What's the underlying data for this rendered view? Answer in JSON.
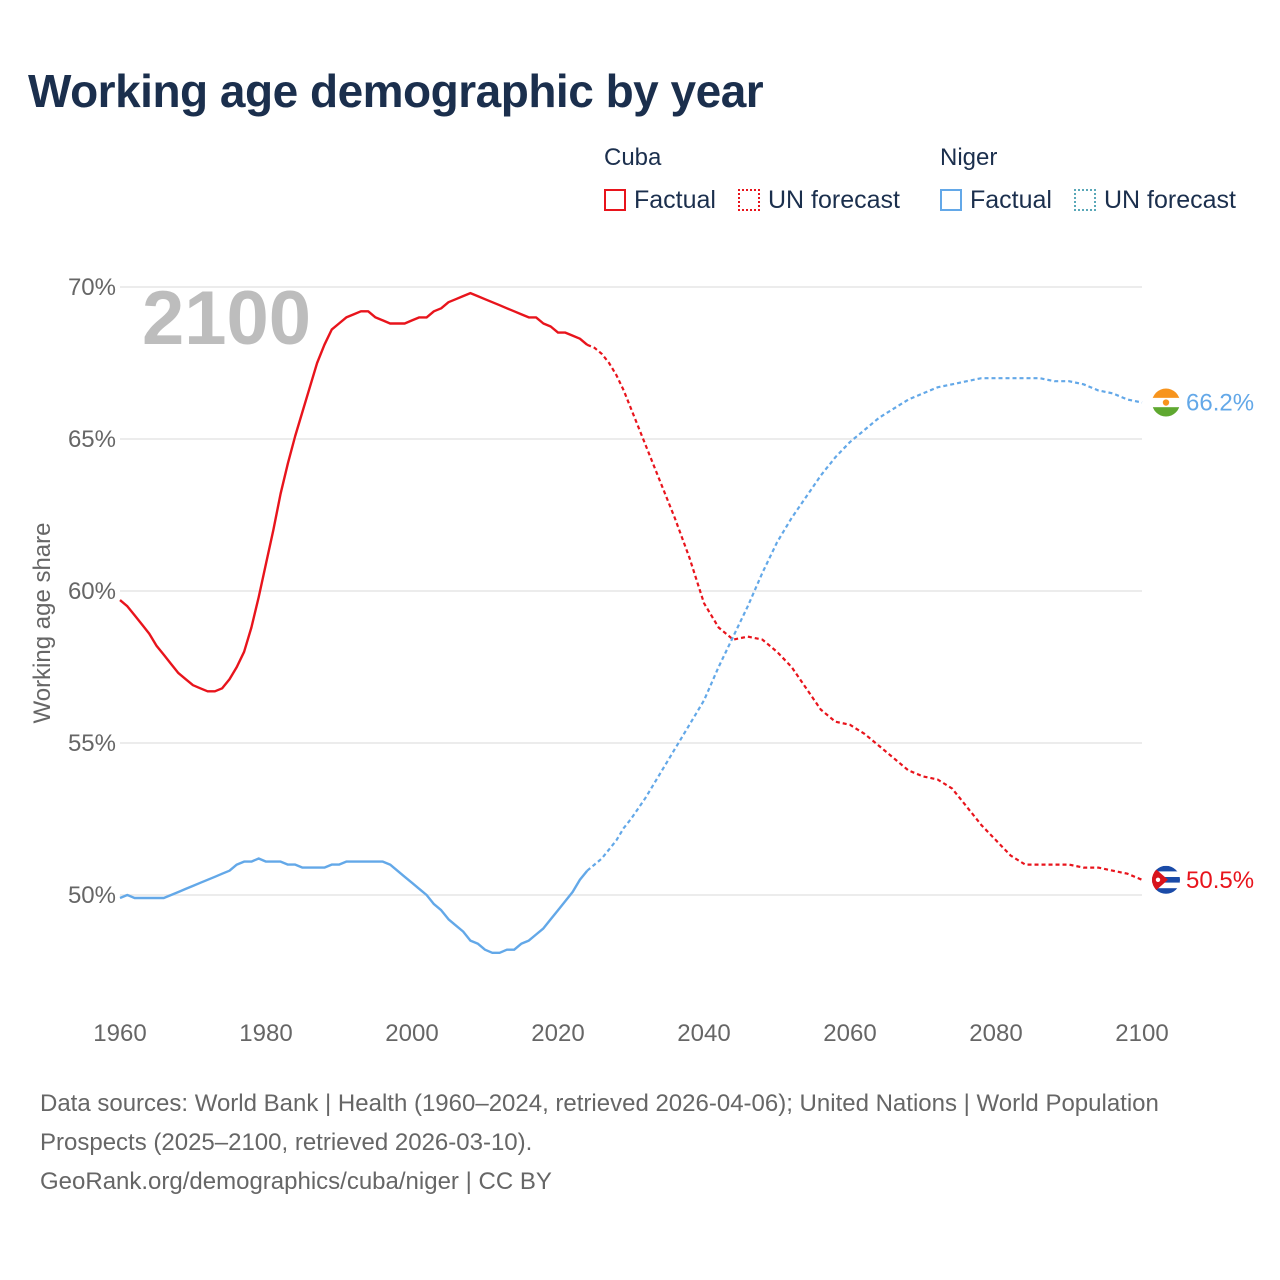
{
  "title": "Working age demographic by year",
  "legend": {
    "groups": [
      {
        "name": "Cuba",
        "factual": "Factual",
        "forecast": "UN forecast"
      },
      {
        "name": "Niger",
        "factual": "Factual",
        "forecast": "UN forecast"
      }
    ]
  },
  "colors": {
    "cuba": "#e8141c",
    "niger": "#63a8e8",
    "grid": "#e6e6e6",
    "axis_text": "#666666",
    "year_watermark": "#bdbdbd"
  },
  "footer": {
    "sources": "Data sources: World Bank | Health (1960–2024, retrieved 2026-04-06); United Nations | World Population Prospects (2025–2100, retrieved 2026-03-10).",
    "credit": "GeoRank.org/demographics/cuba/niger | CC BY"
  },
  "chart_data": {
    "type": "line",
    "ylabel": "Working age share",
    "xlabel": "",
    "year_label": "2100",
    "xlim": [
      1960,
      2100
    ],
    "ylim": [
      46.5,
      70.8
    ],
    "x_ticks": [
      1960,
      1980,
      2000,
      2020,
      2040,
      2060,
      2080,
      2100
    ],
    "x_tick_labels": [
      "1960",
      "1980",
      "2000",
      "2020",
      "2040",
      "2060",
      "2080",
      "2100"
    ],
    "y_ticks": [
      50,
      55,
      60,
      65,
      70
    ],
    "y_tick_labels": [
      "50%",
      "55%",
      "60%",
      "65%",
      "70%"
    ],
    "factual_end_year": 2024,
    "series": [
      {
        "name": "Cuba",
        "color": "#e8141c",
        "end_label": "50.5%",
        "flag": "cuba-flag",
        "x": [
          1960,
          1961,
          1962,
          1963,
          1964,
          1965,
          1966,
          1967,
          1968,
          1969,
          1970,
          1971,
          1972,
          1973,
          1974,
          1975,
          1976,
          1977,
          1978,
          1979,
          1980,
          1981,
          1982,
          1983,
          1984,
          1985,
          1986,
          1987,
          1988,
          1989,
          1990,
          1991,
          1992,
          1993,
          1994,
          1995,
          1996,
          1997,
          1998,
          1999,
          2000,
          2001,
          2002,
          2003,
          2004,
          2005,
          2006,
          2007,
          2008,
          2009,
          2010,
          2011,
          2012,
          2013,
          2014,
          2015,
          2016,
          2017,
          2018,
          2019,
          2020,
          2021,
          2022,
          2023,
          2024,
          2025,
          2026,
          2027,
          2028,
          2029,
          2030,
          2032,
          2034,
          2036,
          2038,
          2040,
          2042,
          2044,
          2046,
          2048,
          2050,
          2052,
          2054,
          2056,
          2058,
          2060,
          2062,
          2064,
          2066,
          2068,
          2070,
          2072,
          2074,
          2076,
          2078,
          2080,
          2082,
          2084,
          2086,
          2088,
          2090,
          2092,
          2094,
          2096,
          2098,
          2100
        ],
        "values": [
          59.7,
          59.5,
          59.2,
          58.9,
          58.6,
          58.2,
          57.9,
          57.6,
          57.3,
          57.1,
          56.9,
          56.8,
          56.7,
          56.7,
          56.8,
          57.1,
          57.5,
          58.0,
          58.8,
          59.8,
          60.9,
          62.0,
          63.2,
          64.2,
          65.1,
          65.9,
          66.7,
          67.5,
          68.1,
          68.6,
          68.8,
          69.0,
          69.1,
          69.2,
          69.2,
          69.0,
          68.9,
          68.8,
          68.8,
          68.8,
          68.9,
          69.0,
          69.0,
          69.2,
          69.3,
          69.5,
          69.6,
          69.7,
          69.8,
          69.7,
          69.6,
          69.5,
          69.4,
          69.3,
          69.2,
          69.1,
          69.0,
          69.0,
          68.8,
          68.7,
          68.5,
          68.5,
          68.4,
          68.3,
          68.1,
          68.0,
          67.8,
          67.5,
          67.1,
          66.6,
          66.0,
          64.8,
          63.6,
          62.4,
          61.1,
          59.6,
          58.8,
          58.4,
          58.5,
          58.4,
          58.0,
          57.5,
          56.8,
          56.1,
          55.7,
          55.6,
          55.3,
          54.9,
          54.5,
          54.1,
          53.9,
          53.8,
          53.5,
          52.9,
          52.3,
          51.8,
          51.3,
          51.0,
          51.0,
          51.0,
          51.0,
          50.9,
          50.9,
          50.8,
          50.7,
          50.5
        ]
      },
      {
        "name": "Niger",
        "color": "#63a8e8",
        "forecast_color": "#63a8e8",
        "end_label": "66.2%",
        "flag": "niger-flag",
        "x": [
          1960,
          1961,
          1962,
          1963,
          1964,
          1965,
          1966,
          1967,
          1968,
          1969,
          1970,
          1971,
          1972,
          1973,
          1974,
          1975,
          1976,
          1977,
          1978,
          1979,
          1980,
          1981,
          1982,
          1983,
          1984,
          1985,
          1986,
          1987,
          1988,
          1989,
          1990,
          1991,
          1992,
          1993,
          1994,
          1995,
          1996,
          1997,
          1998,
          1999,
          2000,
          2001,
          2002,
          2003,
          2004,
          2005,
          2006,
          2007,
          2008,
          2009,
          2010,
          2011,
          2012,
          2013,
          2014,
          2015,
          2016,
          2017,
          2018,
          2019,
          2020,
          2021,
          2022,
          2023,
          2024,
          2025,
          2026,
          2027,
          2028,
          2029,
          2030,
          2032,
          2034,
          2036,
          2038,
          2040,
          2042,
          2044,
          2046,
          2048,
          2050,
          2052,
          2054,
          2056,
          2058,
          2060,
          2062,
          2064,
          2066,
          2068,
          2070,
          2072,
          2074,
          2076,
          2078,
          2080,
          2082,
          2084,
          2086,
          2088,
          2090,
          2092,
          2094,
          2096,
          2098,
          2100
        ],
        "values": [
          49.9,
          50.0,
          49.9,
          49.9,
          49.9,
          49.9,
          49.9,
          50.0,
          50.1,
          50.2,
          50.3,
          50.4,
          50.5,
          50.6,
          50.7,
          50.8,
          51.0,
          51.1,
          51.1,
          51.2,
          51.1,
          51.1,
          51.1,
          51.0,
          51.0,
          50.9,
          50.9,
          50.9,
          50.9,
          51.0,
          51.0,
          51.1,
          51.1,
          51.1,
          51.1,
          51.1,
          51.1,
          51.0,
          50.8,
          50.6,
          50.4,
          50.2,
          50.0,
          49.7,
          49.5,
          49.2,
          49.0,
          48.8,
          48.5,
          48.4,
          48.2,
          48.1,
          48.1,
          48.2,
          48.2,
          48.4,
          48.5,
          48.7,
          48.9,
          49.2,
          49.5,
          49.8,
          50.1,
          50.5,
          50.8,
          51.0,
          51.2,
          51.5,
          51.8,
          52.2,
          52.5,
          53.2,
          54.0,
          54.8,
          55.6,
          56.4,
          57.5,
          58.5,
          59.5,
          60.6,
          61.6,
          62.4,
          63.1,
          63.8,
          64.4,
          64.9,
          65.3,
          65.7,
          66.0,
          66.3,
          66.5,
          66.7,
          66.8,
          66.9,
          67.0,
          67.0,
          67.0,
          67.0,
          67.0,
          66.9,
          66.9,
          66.8,
          66.6,
          66.5,
          66.3,
          66.2
        ]
      }
    ]
  }
}
